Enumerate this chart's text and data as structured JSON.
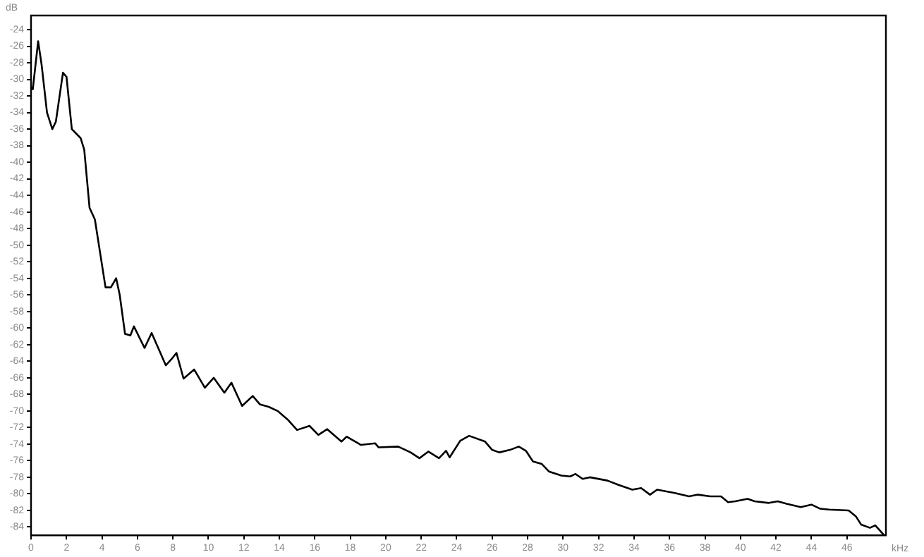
{
  "chart_data": {
    "type": "line",
    "xlabel": "kHz",
    "ylabel": "dB",
    "xlim": [
      0,
      48.2
    ],
    "ylim": [
      -85,
      -22.3
    ],
    "xticks": [
      0,
      2,
      4,
      6,
      8,
      10,
      12,
      14,
      16,
      18,
      20,
      22,
      24,
      26,
      28,
      30,
      32,
      34,
      36,
      38,
      40,
      42,
      44,
      46
    ],
    "yticks": [
      -84,
      -82,
      -80,
      -78,
      -76,
      -74,
      -72,
      -70,
      -68,
      -66,
      -64,
      -62,
      -60,
      -58,
      -56,
      -54,
      -52,
      -50,
      -48,
      -46,
      -44,
      -42,
      -40,
      -38,
      -36,
      -34,
      -32,
      -30,
      -28,
      -26,
      -24
    ],
    "grid": false,
    "legend": false,
    "marker": "none",
    "line_style": "solid",
    "series": [
      {
        "color": "#000000",
        "x": [
          0,
          0.1,
          0.4,
          0.6,
          0.9,
          1.2,
          1.4,
          1.8,
          2.0,
          2.3,
          2.8,
          3.0,
          3.3,
          3.6,
          4.2,
          4.5,
          4.8,
          5.0,
          5.3,
          5.6,
          5.8,
          6.4,
          6.8,
          7.6,
          7.9,
          8.2,
          8.6,
          9.2,
          9.8,
          10.3,
          10.9,
          11.3,
          11.9,
          12.5,
          12.9,
          13.4,
          13.9,
          14.5,
          15.0,
          15.7,
          16.2,
          16.7,
          17.5,
          17.8,
          18.6,
          19.4,
          19.6,
          20.7,
          21.4,
          21.9,
          22.4,
          23.0,
          23.4,
          23.6,
          24.2,
          24.7,
          25.6,
          26.0,
          26.4,
          27.0,
          27.5,
          27.9,
          28.3,
          28.8,
          29.2,
          29.9,
          30.4,
          30.7,
          31.1,
          31.5,
          32.5,
          33.1,
          33.9,
          34.4,
          34.9,
          35.3,
          36.3,
          37.1,
          37.6,
          38.3,
          38.9,
          39.3,
          39.7,
          40.4,
          40.8,
          41.6,
          42.1,
          42.6,
          43.4,
          44.0,
          44.5,
          45.0,
          46.1,
          46.5,
          46.8,
          47.3,
          47.6,
          48.1
        ],
        "values": [
          -30.9,
          -31.2,
          -25.4,
          -28.3,
          -34.0,
          -36.0,
          -35.1,
          -29.2,
          -29.7,
          -36.0,
          -37.1,
          -38.5,
          -45.5,
          -46.9,
          -55.1,
          -55.1,
          -54.0,
          -56.0,
          -60.7,
          -60.9,
          -59.8,
          -62.4,
          -60.6,
          -64.5,
          -63.8,
          -63.0,
          -66.1,
          -65.0,
          -67.2,
          -66.0,
          -67.8,
          -66.6,
          -69.4,
          -68.2,
          -69.2,
          -69.5,
          -70.0,
          -71.1,
          -72.3,
          -71.8,
          -72.9,
          -72.2,
          -73.7,
          -73.1,
          -74.1,
          -73.9,
          -74.4,
          -74.3,
          -75.0,
          -75.7,
          -74.9,
          -75.7,
          -74.8,
          -75.6,
          -73.6,
          -73.0,
          -73.7,
          -74.7,
          -75.0,
          -74.7,
          -74.3,
          -74.8,
          -76.1,
          -76.4,
          -77.3,
          -77.8,
          -77.9,
          -77.6,
          -78.2,
          -78.0,
          -78.4,
          -78.9,
          -79.5,
          -79.3,
          -80.1,
          -79.5,
          -79.9,
          -80.3,
          -80.1,
          -80.3,
          -80.3,
          -81.0,
          -80.9,
          -80.6,
          -80.9,
          -81.1,
          -80.9,
          -81.2,
          -81.6,
          -81.3,
          -81.8,
          -81.9,
          -82.0,
          -82.7,
          -83.7,
          -84.1,
          -83.8,
          -85.0
        ]
      }
    ]
  }
}
